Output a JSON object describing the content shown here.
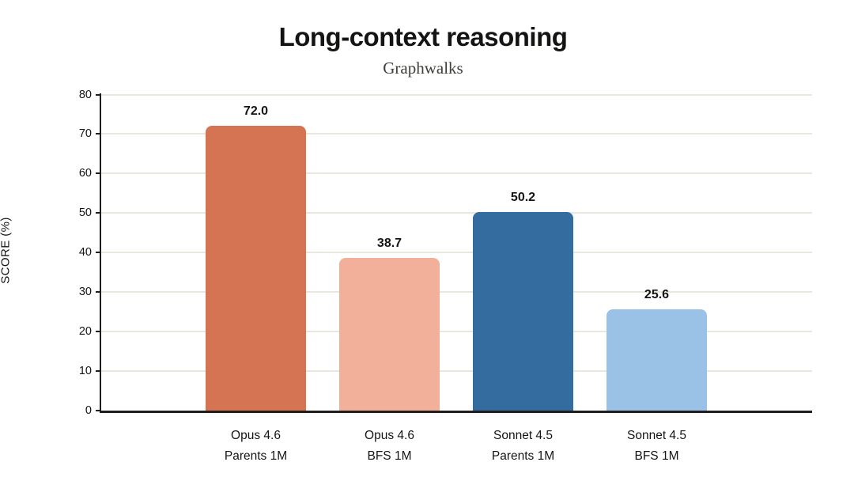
{
  "title": "Long-context reasoning",
  "subtitle": "Graphwalks",
  "chart_data": {
    "type": "bar",
    "title": "Long-context reasoning",
    "subtitle": "Graphwalks",
    "ylabel": "SCORE (%)",
    "xlabel": "",
    "categories": [
      [
        "Opus 4.6",
        "Parents 1M"
      ],
      [
        "Opus 4.6",
        "BFS 1M"
      ],
      [
        "Sonnet 4.5",
        "Parents 1M"
      ],
      [
        "Sonnet 4.5",
        "BFS 1M"
      ]
    ],
    "values": [
      72.0,
      38.7,
      50.2,
      25.6
    ],
    "value_labels": [
      "72.0",
      "38.7",
      "50.2",
      "25.6"
    ],
    "bar_colors": [
      "#D57452",
      "#F2B09A",
      "#356CA0",
      "#9AC1E6"
    ],
    "ylim": [
      0,
      80
    ],
    "yticks": [
      0,
      10,
      20,
      30,
      40,
      50,
      60,
      70,
      80
    ],
    "grid": true,
    "legend": "none",
    "gridline_color": "#EAE7DC",
    "axis_color": "#1F1E1D",
    "text_color": "#141413",
    "background_color": "#FFFFFF"
  }
}
